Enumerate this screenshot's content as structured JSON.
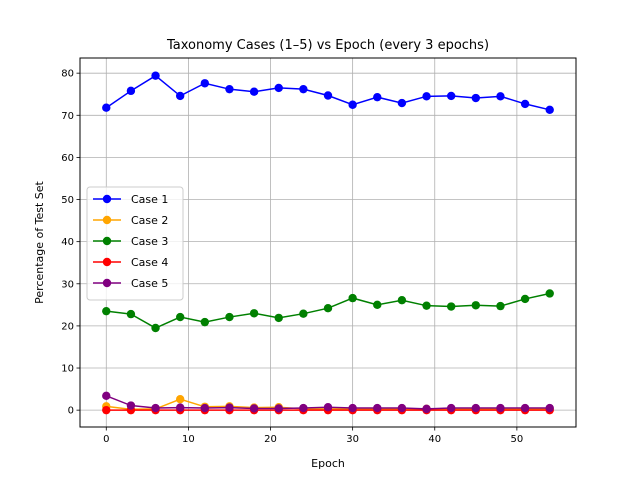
{
  "chart_data": {
    "type": "line",
    "title": "Taxonomy Cases (1–5) vs Epoch (every 3 epochs)",
    "xlabel": "Epoch",
    "ylabel": "Percentage of Test Set",
    "xlim": [
      -3.2,
      57.2
    ],
    "ylim": [
      -4.0,
      83.6
    ],
    "xticks": [
      0,
      10,
      20,
      30,
      40,
      50
    ],
    "yticks": [
      0,
      10,
      20,
      30,
      40,
      50,
      60,
      70,
      80
    ],
    "grid": true,
    "legend_position": "center-left",
    "x": [
      0,
      3,
      6,
      9,
      12,
      15,
      18,
      21,
      24,
      27,
      30,
      33,
      36,
      39,
      42,
      45,
      48,
      51,
      54
    ],
    "series": [
      {
        "name": "Case 1",
        "color": "#0000ff",
        "values": [
          71.8,
          75.8,
          79.4,
          74.6,
          77.6,
          76.2,
          75.6,
          76.5,
          76.2,
          74.7,
          72.5,
          74.3,
          72.9,
          74.5,
          74.6,
          74.1,
          74.5,
          72.7,
          71.3
        ]
      },
      {
        "name": "Case 2",
        "color": "#ffa500",
        "values": [
          0.9,
          0.2,
          0.3,
          2.6,
          0.8,
          0.9,
          0.6,
          0.7,
          0.3,
          0.3,
          0.3,
          0.3,
          0.3,
          0.3,
          0.3,
          0.3,
          0.3,
          0.3,
          0.3
        ]
      },
      {
        "name": "Case 3",
        "color": "#008000",
        "values": [
          23.5,
          22.8,
          19.5,
          22.1,
          20.9,
          22.1,
          23.0,
          21.9,
          22.9,
          24.2,
          26.6,
          25.0,
          26.1,
          24.8,
          24.6,
          24.9,
          24.7,
          26.4,
          27.7
        ]
      },
      {
        "name": "Case 4",
        "color": "#ff0000",
        "values": [
          0.0,
          0.0,
          0.0,
          0.0,
          0.0,
          0.0,
          0.0,
          0.0,
          0.0,
          0.0,
          0.0,
          0.0,
          0.0,
          0.0,
          0.0,
          0.0,
          0.0,
          0.0,
          0.0
        ]
      },
      {
        "name": "Case 5",
        "color": "#800080",
        "values": [
          3.4,
          1.1,
          0.5,
          0.6,
          0.5,
          0.6,
          0.4,
          0.4,
          0.5,
          0.7,
          0.5,
          0.5,
          0.5,
          0.3,
          0.5,
          0.5,
          0.5,
          0.5,
          0.5
        ]
      }
    ]
  }
}
